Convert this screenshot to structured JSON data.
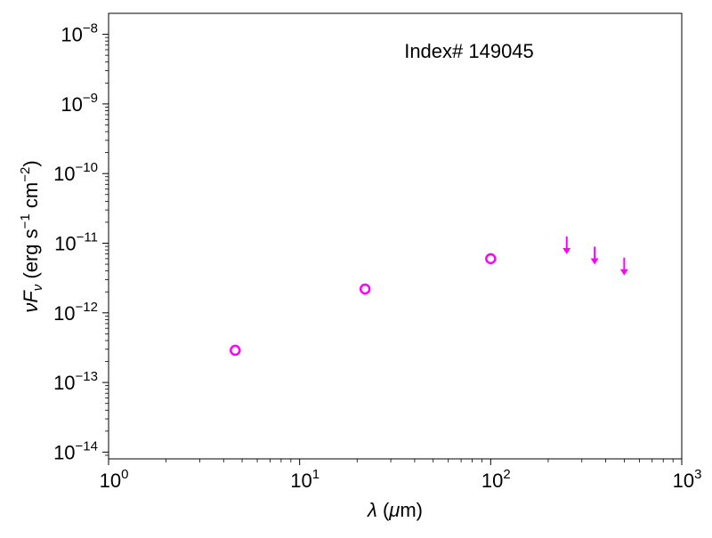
{
  "chart_data": {
    "type": "scatter",
    "title": "",
    "annotation": "Index# 149045",
    "xlabel": "λ (μm)",
    "ylabel": "νFν (erg s⁻¹ cm⁻²)",
    "xscale": "log",
    "yscale": "log",
    "xlim": [
      1,
      1000
    ],
    "ylim": [
      8e-15,
      2e-08
    ],
    "grid": false,
    "x_ticks": [
      {
        "value": 1,
        "base": "10",
        "exp": "0"
      },
      {
        "value": 10,
        "base": "10",
        "exp": "1"
      },
      {
        "value": 100,
        "base": "10",
        "exp": "2"
      },
      {
        "value": 1000,
        "base": "10",
        "exp": "3"
      }
    ],
    "y_ticks": [
      {
        "value": 1e-14,
        "base": "10",
        "exp": "−14"
      },
      {
        "value": 1e-13,
        "base": "10",
        "exp": "−13"
      },
      {
        "value": 1e-12,
        "base": "10",
        "exp": "−12"
      },
      {
        "value": 1e-11,
        "base": "10",
        "exp": "−11"
      },
      {
        "value": 1e-10,
        "base": "10",
        "exp": "−10"
      },
      {
        "value": 1e-09,
        "base": "10",
        "exp": "−9"
      },
      {
        "value": 1e-08,
        "base": "10",
        "exp": "−8"
      }
    ],
    "series": [
      {
        "marker": "open-circle",
        "color": "#ff00ff",
        "points": [
          {
            "x": 4.6,
            "y": 2.9e-13
          },
          {
            "x": 22,
            "y": 2.2e-12
          },
          {
            "x": 100,
            "y": 6e-12
          }
        ]
      },
      {
        "marker": "upper-limit-arrow",
        "color": "#ff00ff",
        "points": [
          {
            "x": 250,
            "y": 1.25e-11
          },
          {
            "x": 350,
            "y": 8.9e-12
          },
          {
            "x": 500,
            "y": 6.2e-12
          }
        ]
      }
    ]
  }
}
